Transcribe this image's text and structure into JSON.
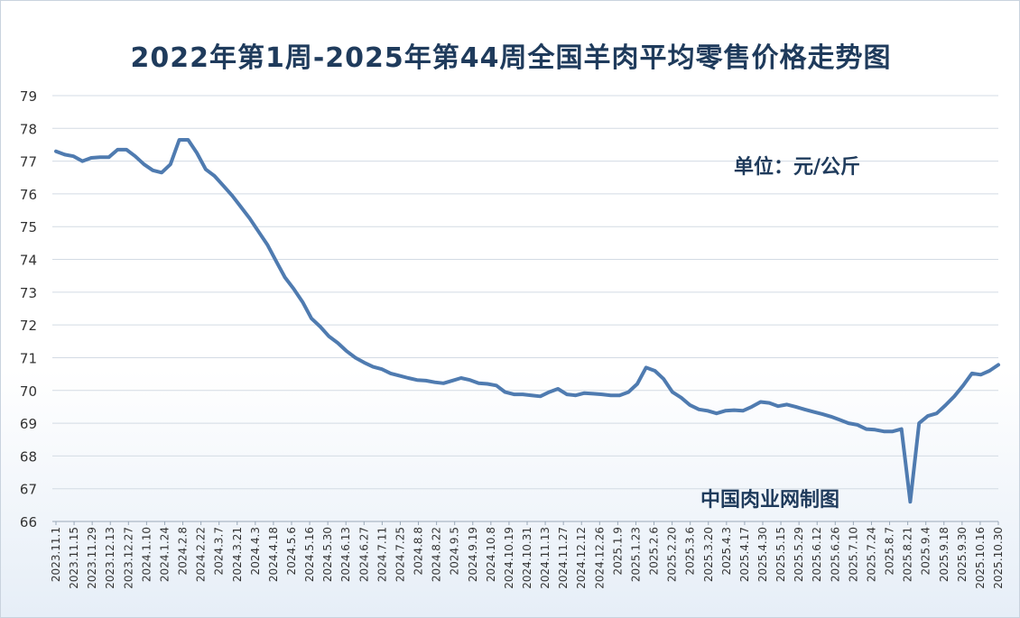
{
  "title": "2022年第1周-2025年第44周全国羊肉平均零售价格走势图",
  "unit_label": "单位：元/公斤",
  "credit": "中国肉业网制图",
  "colors": {
    "line": "#4f7bb0",
    "grid": "#d3dbe4",
    "text": "#1f3b5c",
    "tick": "#333333"
  },
  "chart_data": {
    "type": "line",
    "title": "2022年第1周-2025年第44周全国羊肉平均零售价格走势图",
    "ylabel": "单位：元/公斤",
    "xlabel": "",
    "ylim": [
      66,
      79
    ],
    "yticks": [
      66,
      67,
      68,
      69,
      70,
      71,
      72,
      73,
      74,
      75,
      76,
      77,
      78,
      79
    ],
    "grid": true,
    "x_tick_labels": [
      "2023.11.1",
      "2023.11.15",
      "2023.11.29",
      "2023.12.13",
      "2023.12.27",
      "2024.1.10",
      "2024.1.24",
      "2024.2.8",
      "2024.2.22",
      "2024.3.7",
      "2024.3.21",
      "2024.4.3",
      "2024.4.18",
      "2024.5.6",
      "2024.5.16",
      "2024.5.30",
      "2024.6.13",
      "2024.6.27",
      "2024.7.11",
      "2024.7.25",
      "2024.8.8",
      "2024.8.22",
      "2024.9.5",
      "2024.9.19",
      "2024.10.8",
      "2024.10.19",
      "2024.10.31",
      "2024.11.13",
      "2024.11.27",
      "2024.12.12",
      "2024.12.26",
      "2025.1.9",
      "2025.1.23",
      "2025.2.6",
      "2025.2.20",
      "2025.3.6",
      "2025.3.20",
      "2025.4.3",
      "2025.4.17",
      "2025.4.30",
      "2025.5.15",
      "2025.5.29",
      "2025.6.12",
      "2025.6.26",
      "2025.7.10",
      "2025.7.24",
      "2025.8.7",
      "2025.8.21",
      "2025.9.4",
      "2025.9.18",
      "2025.9.30",
      "2025.10.16",
      "2025.10.30"
    ],
    "series": [
      {
        "values": [
          77.3,
          77.2,
          77.15,
          77.0,
          77.1,
          77.12,
          77.12,
          77.35,
          77.35,
          77.15,
          76.9,
          76.72,
          76.65,
          76.9,
          77.65,
          77.65,
          77.25,
          76.75,
          76.55,
          76.25,
          75.95,
          75.6,
          75.25,
          74.85,
          74.45,
          73.95,
          73.45,
          73.1,
          72.7,
          72.2,
          71.95,
          71.65,
          71.45,
          71.2,
          71.0,
          70.85,
          70.72,
          70.65,
          70.52,
          70.45,
          70.38,
          70.32,
          70.3,
          70.25,
          70.22,
          70.3,
          70.38,
          70.32,
          70.22,
          70.2,
          70.15,
          69.95,
          69.88,
          69.88,
          69.85,
          69.82,
          69.95,
          70.05,
          69.88,
          69.85,
          69.92,
          69.9,
          69.88,
          69.85,
          69.85,
          69.95,
          70.2,
          70.7,
          70.6,
          70.35,
          69.95,
          69.78,
          69.55,
          69.42,
          69.38,
          69.3,
          69.38,
          69.4,
          69.38,
          69.5,
          69.65,
          69.62,
          69.52,
          69.57,
          69.5,
          69.42,
          69.35,
          69.28,
          69.2,
          69.1,
          69.0,
          68.95,
          68.82,
          68.8,
          68.75,
          68.75,
          68.82,
          66.6,
          69.0,
          69.22,
          69.3,
          69.55,
          69.82,
          70.15,
          70.52,
          70.48,
          70.6,
          70.78
        ]
      }
    ]
  }
}
